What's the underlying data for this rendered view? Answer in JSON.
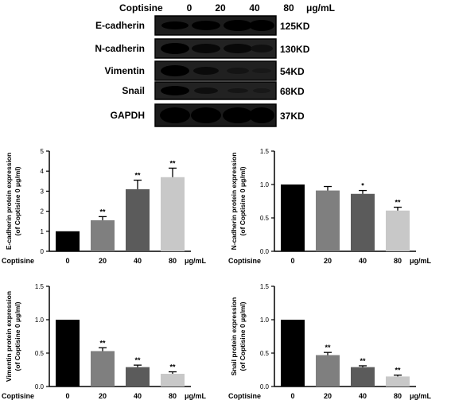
{
  "blot": {
    "treatment_label": "Coptisine",
    "doses": [
      "0",
      "20",
      "40",
      "80"
    ],
    "unit": "μg/mL",
    "rows": [
      {
        "protein": "E-cadherin",
        "size": "125KD"
      },
      {
        "protein": "N-cadherin",
        "size": "130KD"
      },
      {
        "protein": "Vimentin",
        "size": "54KD"
      },
      {
        "protein": "Snail",
        "size": "68KD"
      },
      {
        "protein": "GAPDH",
        "size": "37KD"
      }
    ]
  },
  "chart_data": [
    {
      "type": "bar",
      "categories": [
        "0",
        "20",
        "40",
        "80"
      ],
      "values": [
        1.0,
        1.55,
        3.1,
        3.7
      ],
      "errors": [
        0,
        0.18,
        0.45,
        0.45
      ],
      "significance": [
        "",
        "**",
        "**",
        "**"
      ],
      "colors": [
        "#000000",
        "#7f7f7f",
        "#5b5b5b",
        "#c8c8c8"
      ],
      "ylabel": [
        "E-cadherin protein expression",
        "(of Coptisine 0 μg/ml)"
      ],
      "ylim": [
        0,
        5
      ],
      "yticks": [
        "0",
        "1",
        "2",
        "3",
        "4",
        "5"
      ],
      "xprefix": "Coptisine",
      "xunit": "μg/mL"
    },
    {
      "type": "bar",
      "categories": [
        "0",
        "20",
        "40",
        "80"
      ],
      "values": [
        1.0,
        0.91,
        0.86,
        0.61
      ],
      "errors": [
        0,
        0.06,
        0.05,
        0.05
      ],
      "significance": [
        "",
        "",
        "*",
        "**"
      ],
      "colors": [
        "#000000",
        "#7f7f7f",
        "#5b5b5b",
        "#c8c8c8"
      ],
      "ylabel": [
        "N-cadherin protein expression",
        "(of Coptisine 0 μg/ml)"
      ],
      "ylim": [
        0,
        1.5
      ],
      "yticks": [
        "0.0",
        "0.5",
        "1.0",
        "1.5"
      ],
      "xprefix": "Coptisine",
      "xunit": "μg/mL"
    },
    {
      "type": "bar",
      "categories": [
        "0",
        "20",
        "40",
        "80"
      ],
      "values": [
        1.0,
        0.53,
        0.29,
        0.19
      ],
      "errors": [
        0,
        0.05,
        0.03,
        0.03
      ],
      "significance": [
        "",
        "**",
        "**",
        "**"
      ],
      "colors": [
        "#000000",
        "#7f7f7f",
        "#5b5b5b",
        "#c8c8c8"
      ],
      "ylabel": [
        "Vimentin protein expression",
        "(of Coptisine 0 μg/ml)"
      ],
      "ylim": [
        0,
        1.5
      ],
      "yticks": [
        "0.0",
        "0.5",
        "1.0",
        "1.5"
      ],
      "xprefix": "Coptisine",
      "xunit": "μg/mL"
    },
    {
      "type": "bar",
      "categories": [
        "0",
        "20",
        "40",
        "80"
      ],
      "values": [
        1.0,
        0.47,
        0.29,
        0.15
      ],
      "errors": [
        0,
        0.04,
        0.02,
        0.02
      ],
      "significance": [
        "",
        "**",
        "**",
        "**"
      ],
      "colors": [
        "#000000",
        "#7f7f7f",
        "#5b5b5b",
        "#c8c8c8"
      ],
      "ylabel": [
        "Snail protein expression",
        "(of Coptisine 0 μg/ml)"
      ],
      "ylim": [
        0,
        1.5
      ],
      "yticks": [
        "0.0",
        "0.5",
        "1.0",
        "1.5"
      ],
      "xprefix": "Coptisine",
      "xunit": "μg/mL"
    }
  ]
}
